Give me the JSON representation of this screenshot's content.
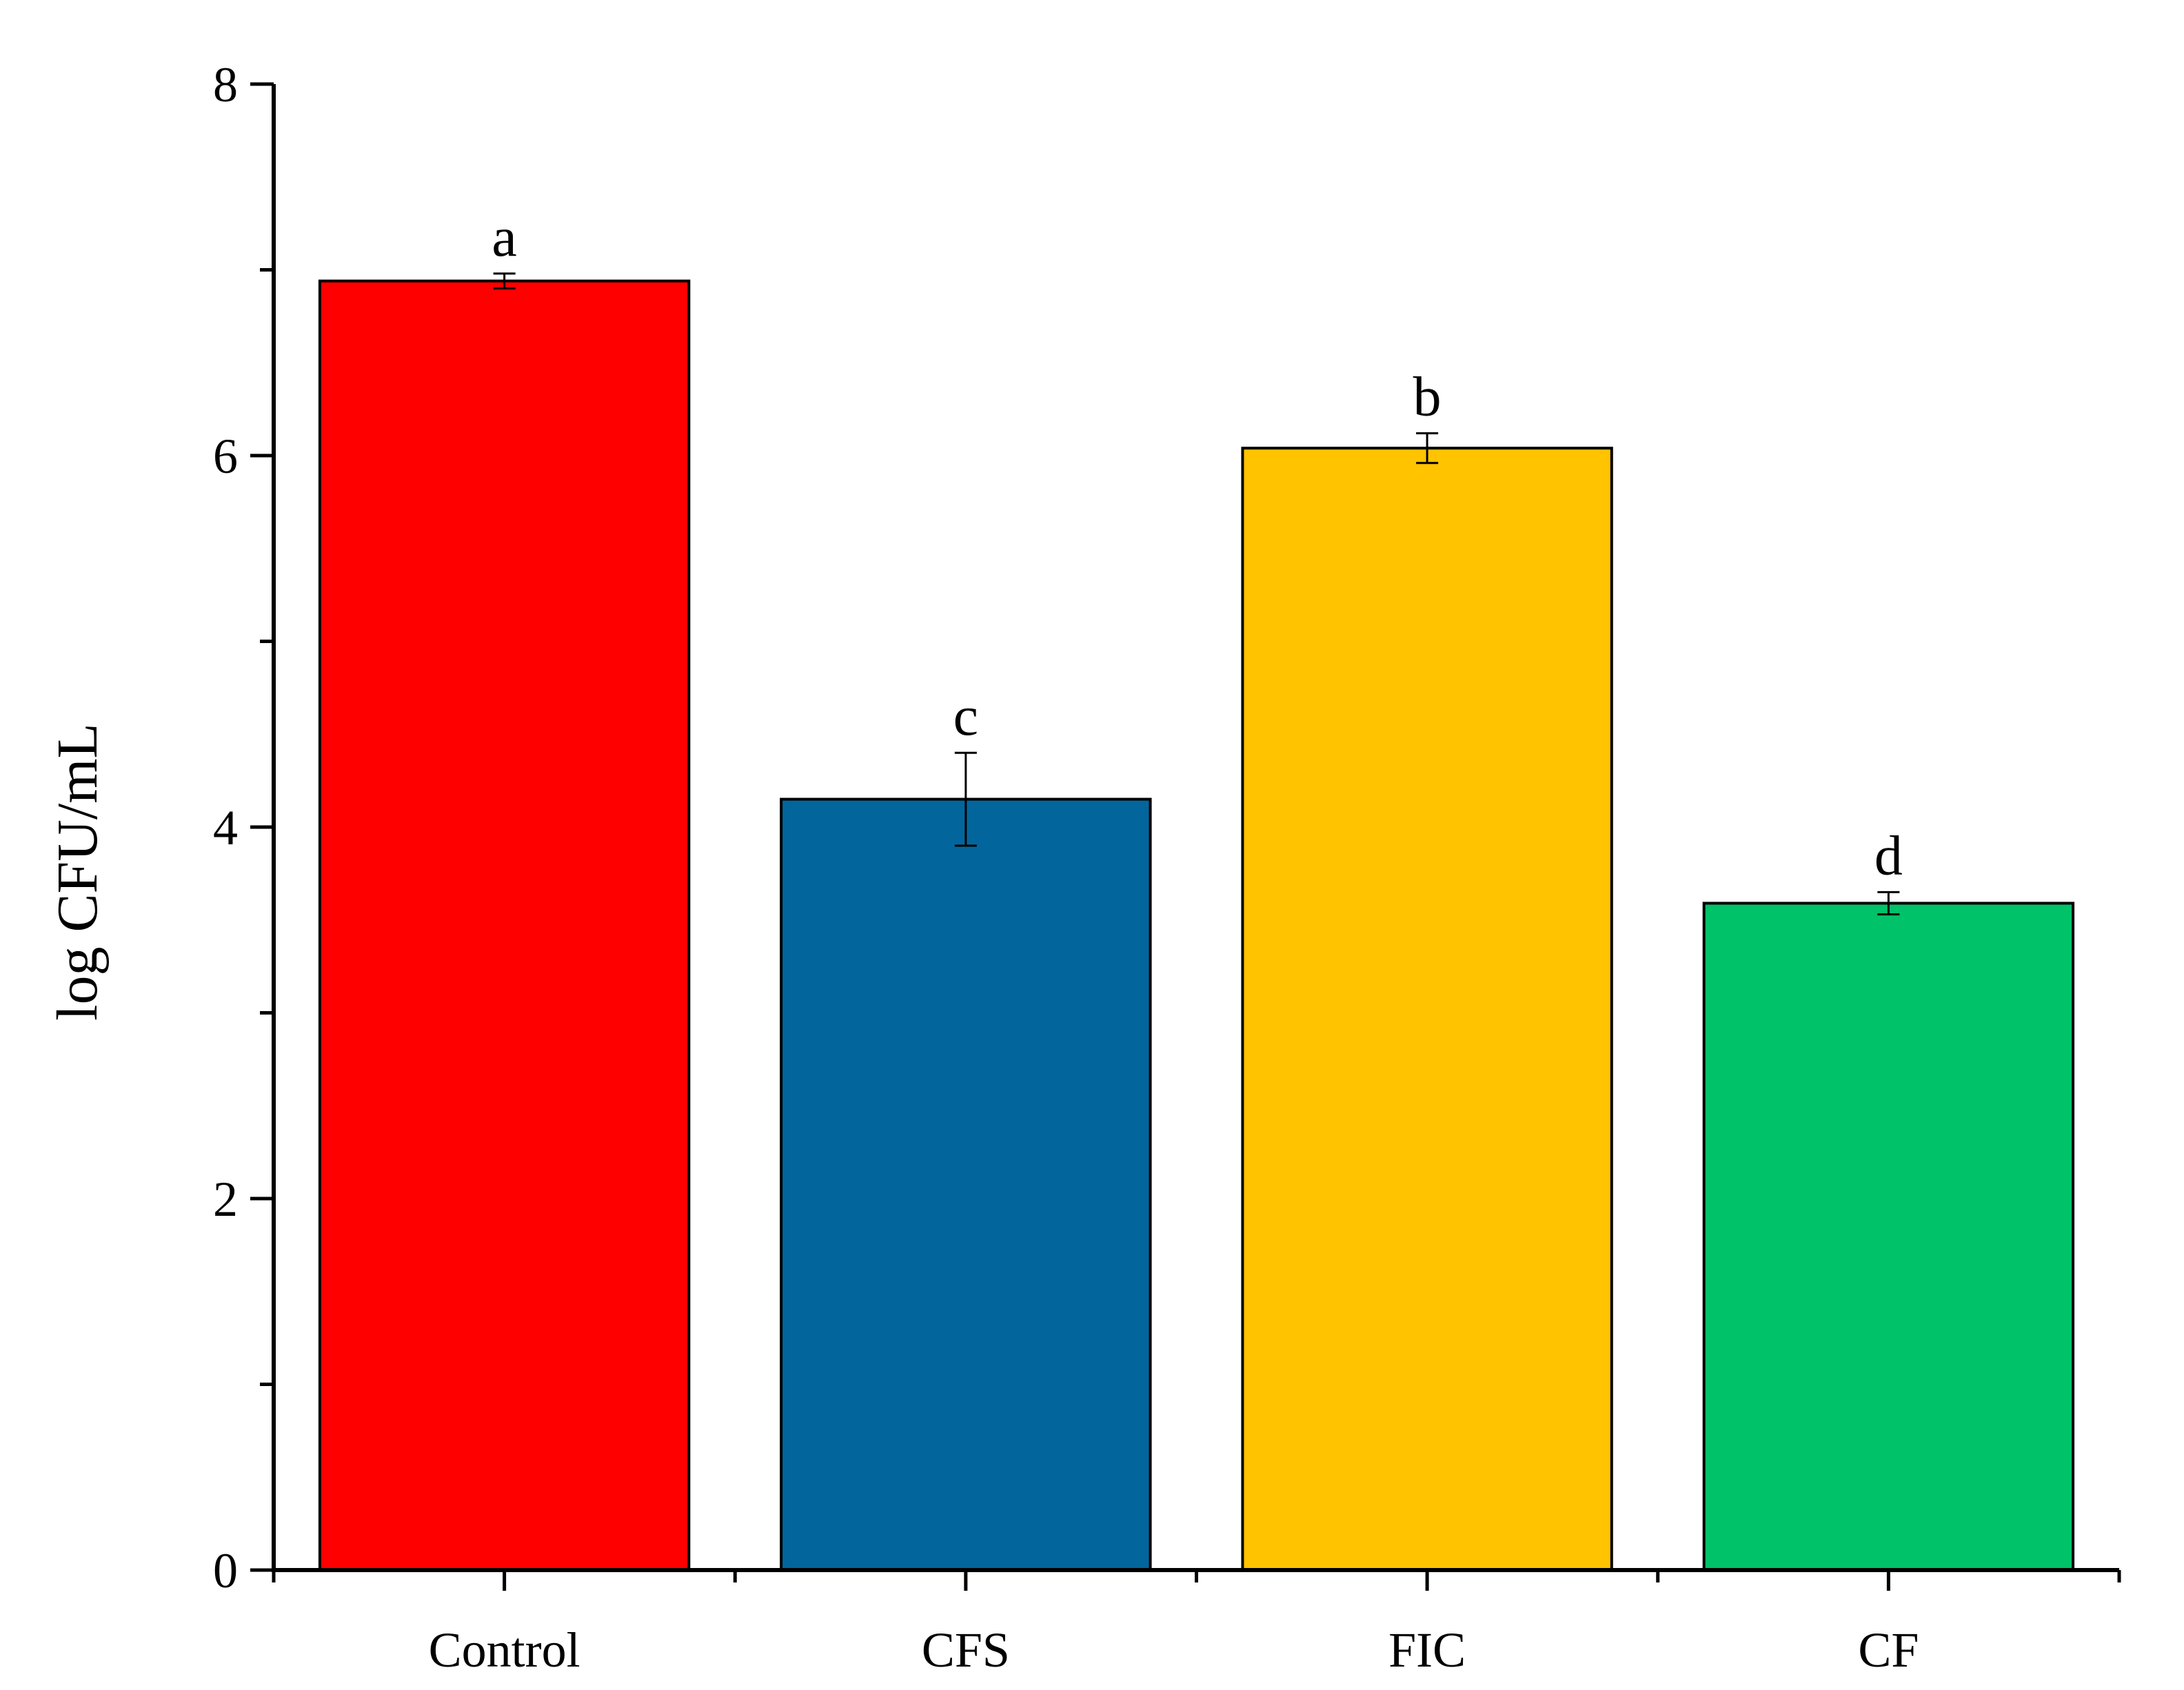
{
  "chart_data": {
    "type": "bar",
    "title": "",
    "xlabel": "",
    "ylabel": "log CFU/mL",
    "ylim": [
      0,
      8
    ],
    "yticks": [
      0,
      2,
      4,
      6,
      8
    ],
    "ytick_labels": [
      "0",
      "2",
      "4",
      "6",
      "8"
    ],
    "y_minor_step": 1,
    "grid": false,
    "legend": "none",
    "categories": [
      "Control",
      "CFS",
      "FIC",
      "CF"
    ],
    "values": [
      6.94,
      4.15,
      6.04,
      3.59
    ],
    "errors": [
      0.04,
      0.25,
      0.08,
      0.06
    ],
    "significance_labels": [
      "a",
      "c",
      "b",
      "d"
    ],
    "colors": [
      "#ff0000",
      "#02669c",
      "#ffc300",
      "#00c268"
    ]
  }
}
